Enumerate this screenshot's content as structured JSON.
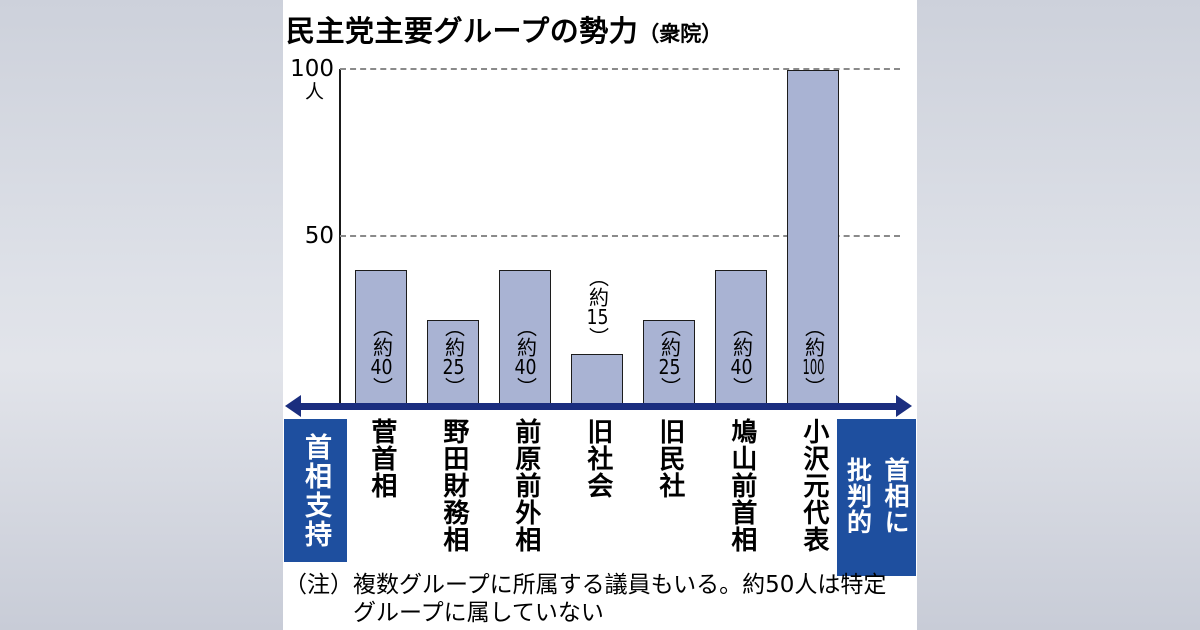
{
  "title": {
    "main": "民主党主要グループの勢力",
    "suffix": "（衆院）"
  },
  "y_axis": {
    "max_label": "100",
    "unit": "人",
    "mid_label": "50"
  },
  "chart_data": {
    "type": "bar",
    "title": "民主党主要グループの勢力（衆院）",
    "unit": "人",
    "categories": [
      "菅首相",
      "野田財務相",
      "前原前外相",
      "旧社会",
      "旧民社",
      "鳩山前首相",
      "小沢元代表"
    ],
    "values": [
      40,
      25,
      40,
      15,
      25,
      40,
      100
    ],
    "value_labels": [
      "（約40）",
      "（約25）",
      "（約40）",
      "（約15）",
      "（約25）",
      "（約40）",
      "（約100）"
    ],
    "ylim": [
      0,
      100
    ],
    "gridlines": [
      50,
      100
    ],
    "axis_annotation_left": "首相支持",
    "axis_annotation_right": "首相に批判的",
    "legend": "none",
    "colors": {
      "bar_fill": "#a9b3d3",
      "bar_border": "#1c1c1c",
      "axis_arrow": "#1b2e7f",
      "end_box": "#1e4f9f",
      "gridline": "#8a8a8a"
    }
  },
  "note": {
    "prefix": "（注）",
    "lines": [
      "複数グループに所属する議員もいる。約50人は特定",
      "グループに属していない"
    ]
  }
}
